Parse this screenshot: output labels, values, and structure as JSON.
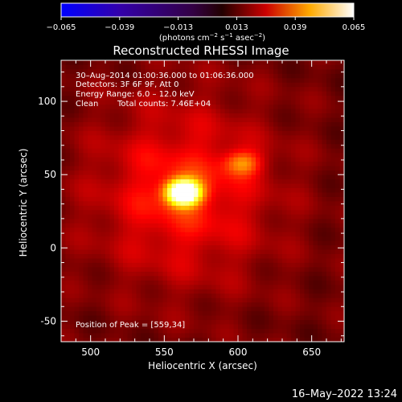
{
  "colorbar": {
    "tick_labels": [
      "−0.065",
      "−0.039",
      "−0.013",
      "0.013",
      "0.039",
      "0.065"
    ],
    "tick_values": [
      -0.065,
      -0.039,
      -0.013,
      0.013,
      0.039,
      0.065
    ],
    "range": [
      -0.065,
      0.065
    ],
    "units_main": "(photons cm",
    "units_exp1": "−2",
    "units_mid": " s",
    "units_exp2": "−1",
    "units_end": " asec",
    "units_exp3": "−2",
    "units_close": ")"
  },
  "footer": {
    "timestamp": "16–May–2022 13:24"
  },
  "chart_data": {
    "type": "heatmap",
    "title": "Reconstructed RHESSI Image",
    "xlabel": "Heliocentric X (arcsec)",
    "ylabel": "Heliocentric Y (arcsec)",
    "xlim": [
      480,
      672
    ],
    "ylim": [
      -64,
      128
    ],
    "x_ticks": [
      500,
      550,
      600,
      650
    ],
    "y_ticks": [
      -50,
      0,
      50,
      100
    ],
    "annotations": [
      "30–Aug–2014 01:00:36.000 to 01:06:36.000",
      "Detectors: 3F 6F 9F, Att 0",
      "Energy Range: 6.0 – 12.0 keV",
      "Clean",
      "Total counts: 7.46E+04",
      "Position of Peak = [559,34]"
    ],
    "peak": {
      "x": 559,
      "y": 34
    },
    "sources": [
      {
        "x": 563,
        "y": 38,
        "sx": 8,
        "sy": 6,
        "amp": 0.065
      },
      {
        "x": 603,
        "y": 58,
        "sx": 9,
        "sy": 6,
        "amp": 0.02
      }
    ],
    "colormap": "hot"
  }
}
